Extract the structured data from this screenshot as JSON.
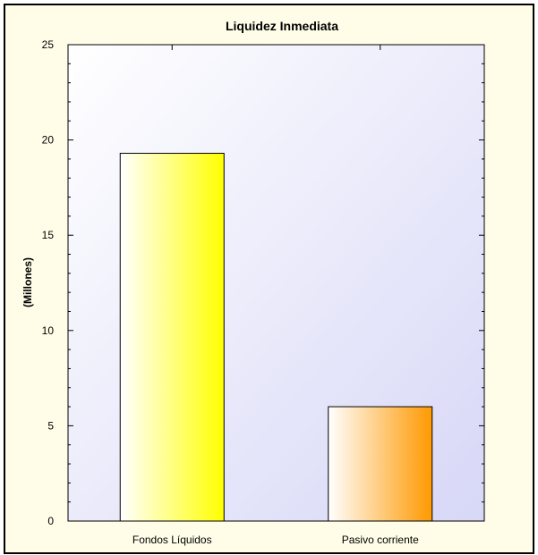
{
  "chart_data": {
    "type": "bar",
    "title": "Liquidez Inmediata",
    "ylabel": "(Millones)",
    "xlabel": "",
    "categories": [
      "Fondos Líquidos",
      "Pasivo corriente"
    ],
    "values": [
      19.3,
      6.0
    ],
    "ylim": [
      0,
      25
    ],
    "yticks": [
      0,
      5,
      10,
      15,
      20,
      25
    ],
    "bar_colors": [
      "#ffff00",
      "#ff9900"
    ],
    "grid": false,
    "legend": "none"
  },
  "colors": {
    "frame_background": "#fffde8",
    "plot_gradient_start": "#ffffff",
    "plot_gradient_end": "#d7d7f7",
    "border": "#000000"
  }
}
